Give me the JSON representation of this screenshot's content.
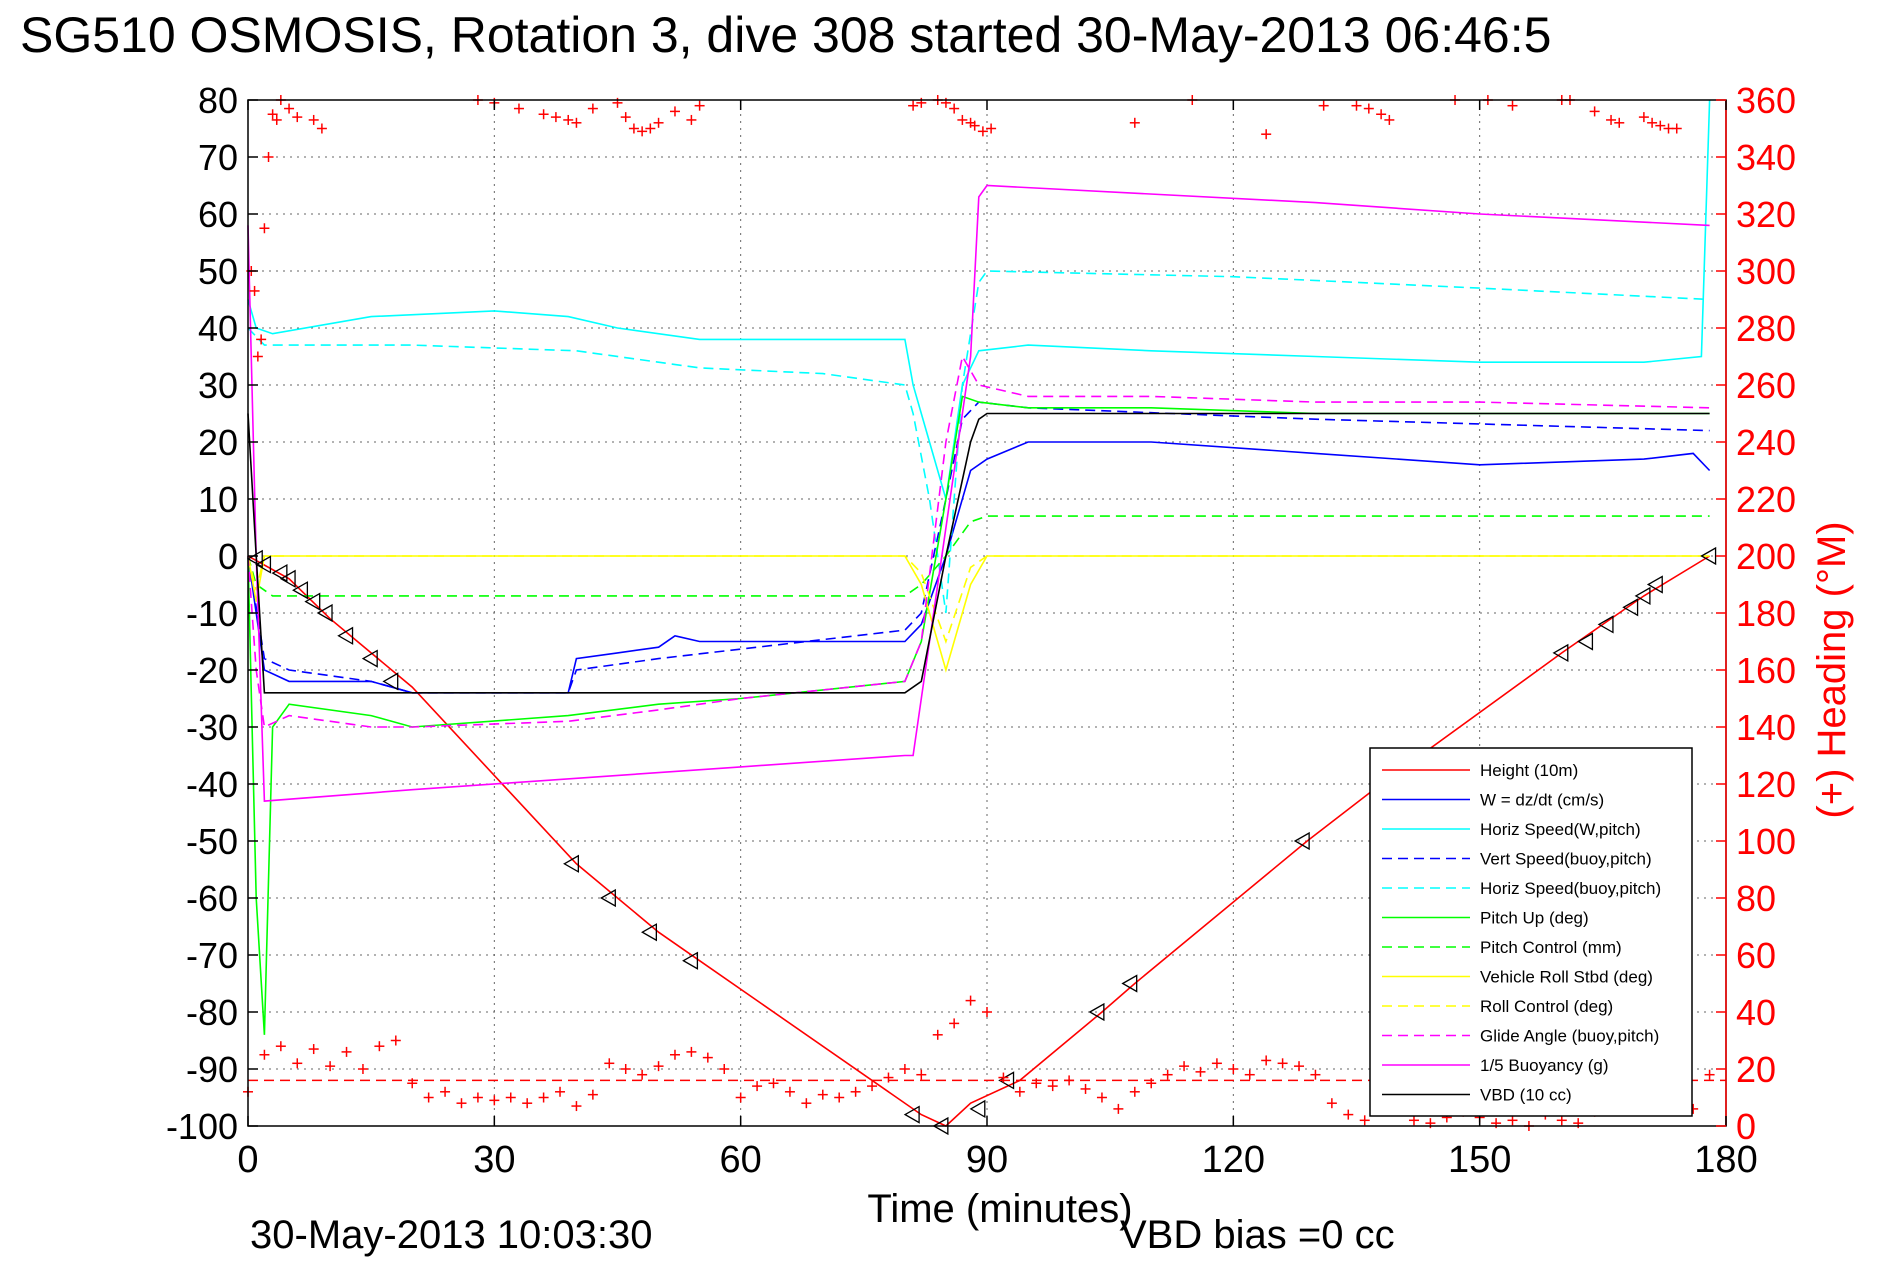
{
  "title": "SG510 OSMOSIS, Rotation 3, dive 308 started 30-May-2013 06:46:5",
  "footer": {
    "timestamp": "30-May-2013 10:03:30",
    "vbd_bias": "VBD bias =0 cc"
  },
  "colors": {
    "red": "#ff0000",
    "blue": "#0000ff",
    "cyan": "#00ffff",
    "green": "#00ff00",
    "yellow": "#ffff00",
    "magenta": "#ff00ff",
    "black": "#000000"
  },
  "chart_data": {
    "type": "line",
    "xlabel": "Time (minutes)",
    "ylabel_right": "(+) Heading (°M)",
    "xlim": [
      0,
      180
    ],
    "ylim_left": [
      -100,
      80
    ],
    "ylim_right": [
      0,
      360
    ],
    "xticks": [
      0,
      30,
      60,
      90,
      120,
      150,
      180
    ],
    "yticks_left": [
      80,
      70,
      60,
      50,
      40,
      30,
      20,
      10,
      0,
      -10,
      -20,
      -30,
      -40,
      -50,
      -60,
      -70,
      -80,
      -90,
      -100
    ],
    "yticks_right": [
      360,
      340,
      320,
      300,
      280,
      260,
      240,
      220,
      200,
      180,
      160,
      140,
      120,
      100,
      80,
      60,
      40,
      20,
      0
    ],
    "grid": true,
    "legend_position": "bottom-right",
    "legend": [
      {
        "label": "Height (10m)",
        "color": "#ff0000",
        "style": "solid"
      },
      {
        "label": "W = dz/dt (cm/s)",
        "color": "#0000ff",
        "style": "solid"
      },
      {
        "label": "Horiz Speed(W,pitch)",
        "color": "#00ffff",
        "style": "solid"
      },
      {
        "label": "Vert Speed(buoy,pitch)",
        "color": "#0000ff",
        "style": "dashed"
      },
      {
        "label": "Horiz Speed(buoy,pitch)",
        "color": "#00ffff",
        "style": "dashed"
      },
      {
        "label": "Pitch Up (deg)",
        "color": "#00ff00",
        "style": "solid"
      },
      {
        "label": "Pitch Control (mm)",
        "color": "#00ff00",
        "style": "dashed"
      },
      {
        "label": "Vehicle Roll Stbd (deg)",
        "color": "#ffff00",
        "style": "solid"
      },
      {
        "label": "Roll Control (deg)",
        "color": "#ffff00",
        "style": "dashed"
      },
      {
        "label": "Glide Angle (buoy,pitch)",
        "color": "#ff00ff",
        "style": "dashed"
      },
      {
        "label": "1/5 Buoyancy (g)",
        "color": "#ff00ff",
        "style": "solid"
      },
      {
        "label": "VBD (10 cc)",
        "color": "#000000",
        "style": "solid"
      }
    ],
    "series": [
      {
        "key": "height",
        "color": "#ff0000",
        "dash": false,
        "x": [
          0,
          5,
          10,
          20,
          40,
          45,
          50,
          55,
          82,
          85,
          88,
          94,
          104,
          108,
          129,
          138,
          160,
          165,
          170,
          178
        ],
        "y": [
          0,
          -4,
          -11,
          -23,
          -54,
          -60,
          -66,
          -71,
          -98,
          -100,
          -96,
          -92,
          -80,
          -75,
          -50,
          -40,
          -17,
          -12,
          -7,
          0
        ]
      },
      {
        "key": "w",
        "color": "#0000ff",
        "dash": false,
        "x": [
          0,
          1,
          2,
          5,
          15,
          20,
          39,
          40,
          45,
          50,
          52,
          55,
          80,
          82,
          85,
          88,
          90,
          95,
          110,
          130,
          150,
          170,
          176,
          178
        ],
        "y": [
          0,
          -10,
          -20,
          -22,
          -22,
          -24,
          -24,
          -18,
          -17,
          -16,
          -14,
          -15,
          -15,
          -12,
          0,
          15,
          17,
          20,
          20,
          18,
          16,
          17,
          18,
          15
        ]
      },
      {
        "key": "horiz_w",
        "color": "#00ffff",
        "dash": false,
        "x": [
          0,
          1,
          3,
          15,
          30,
          39,
          45,
          55,
          70,
          80,
          81,
          83,
          85,
          87,
          89,
          95,
          110,
          130,
          150,
          170,
          177,
          178
        ],
        "y": [
          45,
          40,
          39,
          42,
          43,
          42,
          40,
          38,
          38,
          38,
          30,
          20,
          10,
          30,
          36,
          37,
          36,
          35,
          34,
          34,
          35,
          80
        ]
      },
      {
        "key": "vert_buoy",
        "color": "#0000ff",
        "dash": true,
        "x": [
          0,
          2,
          5,
          15,
          20,
          39,
          40,
          50,
          80,
          82,
          85,
          87,
          89,
          95,
          130,
          178
        ],
        "y": [
          0,
          -18,
          -20,
          -22,
          -24,
          -24,
          -20,
          -18,
          -13,
          -10,
          10,
          24,
          27,
          26,
          24,
          22
        ]
      },
      {
        "key": "horiz_buoy",
        "color": "#00ffff",
        "dash": true,
        "x": [
          0,
          2,
          20,
          40,
          55,
          70,
          80,
          81,
          83,
          85,
          87,
          89,
          90,
          120,
          150,
          178
        ],
        "y": [
          40,
          37,
          37,
          36,
          33,
          32,
          30,
          25,
          10,
          -10,
          30,
          48,
          50,
          49,
          47,
          45
        ]
      },
      {
        "key": "pitch_up",
        "color": "#00ff00",
        "dash": false,
        "x": [
          0,
          1,
          2,
          3,
          5,
          15,
          20,
          39,
          50,
          60,
          80,
          82,
          85,
          87,
          89,
          95,
          110,
          130,
          150,
          178
        ],
        "y": [
          0,
          -60,
          -84,
          -30,
          -26,
          -28,
          -30,
          -28,
          -26,
          -25,
          -22,
          -15,
          10,
          28,
          27,
          26,
          26,
          25,
          25,
          25
        ]
      },
      {
        "key": "pitch_control",
        "color": "#00ff00",
        "dash": true,
        "x": [
          0,
          1,
          3,
          80,
          82,
          85,
          88,
          90,
          178
        ],
        "y": [
          0,
          -5,
          -7,
          -7,
          -5,
          0,
          6,
          7,
          7
        ]
      },
      {
        "key": "vehicle_roll",
        "color": "#ffff00",
        "dash": false,
        "x": [
          0,
          1,
          2,
          30,
          60,
          80,
          82,
          85,
          88,
          90,
          120,
          150,
          178
        ],
        "y": [
          0,
          -8,
          0,
          0,
          0,
          0,
          -5,
          -20,
          -5,
          0,
          0,
          0,
          0
        ]
      },
      {
        "key": "roll_control",
        "color": "#ffff00",
        "dash": true,
        "x": [
          0,
          1,
          2,
          30,
          60,
          80,
          82,
          85,
          88,
          90,
          178
        ],
        "y": [
          0,
          -6,
          0,
          0,
          0,
          0,
          -3,
          -15,
          -2,
          0,
          0
        ]
      },
      {
        "key": "glide",
        "color": "#ff00ff",
        "dash": true,
        "x": [
          0,
          1,
          2,
          5,
          15,
          20,
          39,
          50,
          60,
          80,
          82,
          85,
          87,
          89,
          95,
          110,
          130,
          150,
          178
        ],
        "y": [
          0,
          -20,
          -30,
          -28,
          -30,
          -30,
          -29,
          -27,
          -25,
          -22,
          -15,
          20,
          35,
          30,
          28,
          28,
          27,
          27,
          26
        ]
      },
      {
        "key": "buoyancy",
        "color": "#ff00ff",
        "dash": false,
        "x": [
          0,
          1,
          2,
          20,
          60,
          80,
          81,
          88,
          89,
          90,
          130,
          150,
          178
        ],
        "y": [
          58,
          0,
          -43,
          -41,
          -37,
          -35,
          -35,
          35,
          63,
          65,
          62,
          60,
          58
        ]
      },
      {
        "key": "vbd",
        "color": "#000000",
        "dash": false,
        "x": [
          0,
          1,
          2,
          80,
          82,
          85,
          88,
          89,
          90,
          178
        ],
        "y": [
          25,
          0,
          -24,
          -24,
          -22,
          0,
          20,
          24,
          25,
          25
        ]
      }
    ],
    "vbd_markers": {
      "x": [
        1,
        2,
        4,
        5,
        6.5,
        8,
        9.5,
        12,
        15,
        17.5,
        39.5,
        44,
        49,
        54,
        81,
        84.5,
        89,
        92.5,
        103.5,
        107.5,
        128.5,
        138,
        160,
        163,
        165.5,
        168.5,
        170,
        171.5,
        178
      ],
      "y": [
        -0.5,
        -1.5,
        -3,
        -4,
        -6,
        -8,
        -10,
        -14,
        -18,
        -22,
        -54,
        -60,
        -66,
        -71,
        -98,
        -100,
        -97,
        -92,
        -80,
        -75,
        -50,
        -41,
        -17,
        -15,
        -12,
        -9,
        -7,
        -5,
        0
      ]
    },
    "heading_reference": 16,
    "heading_points": {
      "x": [
        0.4,
        0.8,
        1.2,
        1.6,
        2,
        2.5,
        3,
        3.5,
        4,
        5,
        6,
        8,
        9,
        28,
        30,
        33,
        36,
        37.5,
        39,
        40,
        42,
        45,
        46,
        47,
        48,
        49,
        50,
        52,
        54,
        55,
        81,
        82,
        84,
        85,
        86,
        87,
        88,
        88.5,
        89.5,
        90.5,
        108,
        115,
        124,
        131,
        135,
        136.5,
        138,
        139,
        147,
        151,
        154,
        160,
        161,
        164,
        166,
        167,
        170,
        171,
        172,
        173,
        174
      ],
      "y": [
        300,
        293,
        270,
        276,
        315,
        340,
        355,
        353,
        360,
        357,
        354,
        353,
        350,
        360,
        359,
        357,
        355,
        354,
        353,
        352,
        357,
        359,
        354,
        350,
        349,
        350,
        352,
        356,
        353,
        358,
        358,
        359,
        361,
        359,
        357,
        353,
        352,
        351,
        349,
        350,
        352,
        360,
        348,
        358,
        358,
        357,
        355,
        353,
        360,
        360,
        358,
        360,
        360,
        356,
        353,
        352,
        354,
        352,
        351,
        350,
        350
      ]
    },
    "heading_points_bottom": {
      "x": [
        0,
        2,
        4,
        6,
        8,
        10,
        12,
        14,
        16,
        18,
        20,
        22,
        24,
        26,
        28,
        30,
        32,
        34,
        36,
        38,
        40,
        42,
        44,
        46,
        48,
        50,
        52,
        54,
        56,
        58,
        60,
        62,
        64,
        66,
        68,
        70,
        72,
        74,
        76,
        78,
        80,
        82,
        84,
        86,
        88,
        90,
        92,
        94,
        96,
        98,
        100,
        102,
        104,
        106,
        108,
        110,
        112,
        114,
        116,
        118,
        120,
        122,
        124,
        126,
        128,
        130,
        132,
        134,
        136,
        138,
        140,
        142,
        144,
        146,
        148,
        150,
        152,
        154,
        156,
        158,
        160,
        162,
        164,
        166,
        168,
        170,
        172,
        174,
        176,
        178
      ],
      "y": [
        12,
        25,
        28,
        22,
        27,
        21,
        26,
        20,
        28,
        30,
        15,
        10,
        12,
        8,
        10,
        9,
        10,
        8,
        10,
        12,
        7,
        11,
        22,
        20,
        18,
        21,
        25,
        26,
        24,
        20,
        10,
        14,
        15,
        12,
        8,
        11,
        10,
        12,
        14,
        17,
        20,
        18,
        32,
        36,
        44,
        40,
        17,
        12,
        15,
        14,
        16,
        13,
        10,
        6,
        12,
        15,
        18,
        21,
        19,
        22,
        20,
        18,
        23,
        22,
        21,
        18,
        8,
        4,
        2,
        6,
        9,
        2,
        1,
        3,
        5,
        3,
        1,
        2,
        0,
        4,
        2,
        1,
        5,
        8,
        15,
        14,
        12,
        10,
        6,
        18
      ]
    }
  }
}
